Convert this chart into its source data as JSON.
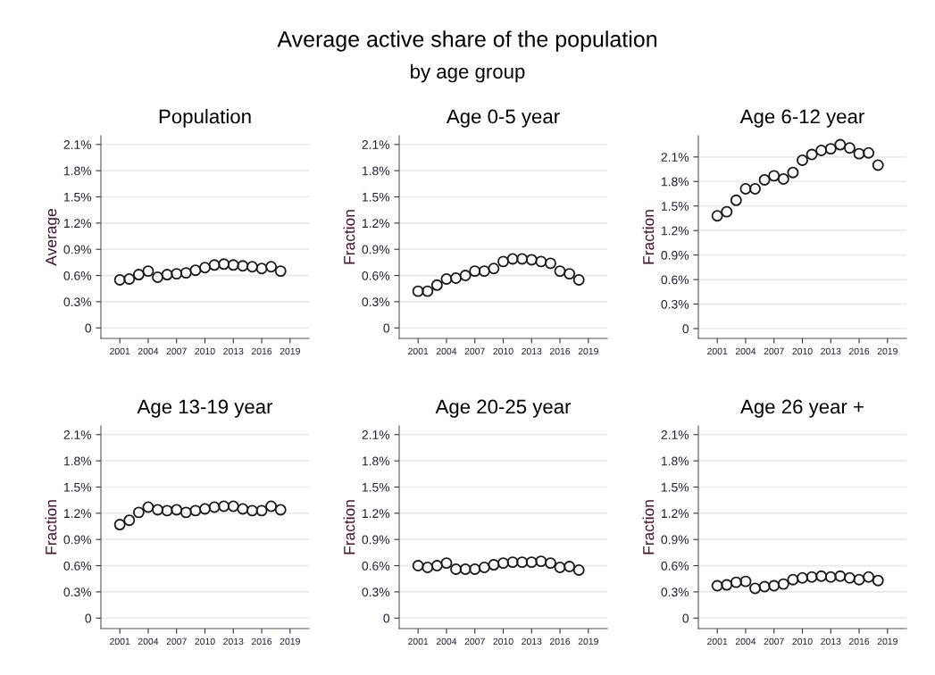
{
  "chart_data": [
    {
      "type": "scatter",
      "title": "Population",
      "ylabel": "Average",
      "annotations": [
        "Average active share of the population",
        "by age group"
      ],
      "marker": "circle",
      "grid": "y",
      "xlim": [
        1999,
        2021
      ],
      "xticks": [
        2001,
        2004,
        2007,
        2010,
        2013,
        2016,
        2019
      ],
      "ylim": [
        -0.12,
        2.2
      ],
      "yticks": [
        {
          "value": 0,
          "label": "0"
        },
        {
          "value": 0.3,
          "label": "0.3%"
        },
        {
          "value": 0.6,
          "label": "0.6%"
        },
        {
          "value": 0.9,
          "label": "0.9%"
        },
        {
          "value": 1.2,
          "label": "1.2%"
        },
        {
          "value": 1.5,
          "label": "1.5%"
        },
        {
          "value": 1.8,
          "label": "1.8%"
        },
        {
          "value": 2.1,
          "label": "2.1%"
        }
      ],
      "x": [
        2001,
        2002,
        2003,
        2004,
        2005,
        2006,
        2007,
        2008,
        2009,
        2010,
        2011,
        2012,
        2013,
        2014,
        2015,
        2016,
        2017,
        2018
      ],
      "series": [
        {
          "color": "#1a1a1a",
          "values": [
            0.55,
            0.56,
            0.61,
            0.65,
            0.58,
            0.61,
            0.62,
            0.63,
            0.66,
            0.69,
            0.72,
            0.73,
            0.72,
            0.71,
            0.7,
            0.68,
            0.7,
            0.65
          ]
        }
      ]
    },
    {
      "type": "scatter",
      "title": "Age 0-5 year",
      "ylabel": "Fraction",
      "marker": "circle",
      "grid": "y",
      "xlim": [
        1999,
        2021
      ],
      "xticks": [
        2001,
        2004,
        2007,
        2010,
        2013,
        2016,
        2019
      ],
      "ylim": [
        -0.12,
        2.2
      ],
      "yticks": [
        {
          "value": 0,
          "label": "0"
        },
        {
          "value": 0.3,
          "label": "0.3%"
        },
        {
          "value": 0.6,
          "label": "0.6%"
        },
        {
          "value": 0.9,
          "label": "0.9%"
        },
        {
          "value": 1.2,
          "label": "1.2%"
        },
        {
          "value": 1.5,
          "label": "1.5%"
        },
        {
          "value": 1.8,
          "label": "1.8%"
        },
        {
          "value": 2.1,
          "label": "2.1%"
        }
      ],
      "x": [
        2001,
        2002,
        2003,
        2004,
        2005,
        2006,
        2007,
        2008,
        2009,
        2010,
        2011,
        2012,
        2013,
        2014,
        2015,
        2016,
        2017,
        2018
      ],
      "series": [
        {
          "color": "#1a1a1a",
          "values": [
            0.42,
            0.42,
            0.49,
            0.56,
            0.57,
            0.6,
            0.65,
            0.65,
            0.68,
            0.76,
            0.79,
            0.79,
            0.78,
            0.76,
            0.74,
            0.65,
            0.62,
            0.55
          ]
        }
      ]
    },
    {
      "type": "scatter",
      "title": "Age 6-12 year",
      "ylabel": "Fraction",
      "marker": "circle",
      "grid": "y",
      "xlim": [
        1999,
        2021
      ],
      "xticks": [
        2001,
        2004,
        2007,
        2010,
        2013,
        2016,
        2019
      ],
      "ylim": [
        -0.12,
        2.36
      ],
      "yticks": [
        {
          "value": 0,
          "label": "0"
        },
        {
          "value": 0.3,
          "label": "0.3%"
        },
        {
          "value": 0.6,
          "label": "0.6%"
        },
        {
          "value": 0.9,
          "label": "0.9%"
        },
        {
          "value": 1.2,
          "label": "1.2%"
        },
        {
          "value": 1.5,
          "label": "1.5%"
        },
        {
          "value": 1.8,
          "label": "1.8%"
        },
        {
          "value": 2.1,
          "label": "2.1%"
        }
      ],
      "x": [
        2001,
        2002,
        2003,
        2004,
        2005,
        2006,
        2007,
        2008,
        2009,
        2010,
        2011,
        2012,
        2013,
        2014,
        2015,
        2016,
        2017,
        2018
      ],
      "series": [
        {
          "color": "#1a1a1a",
          "values": [
            1.38,
            1.43,
            1.57,
            1.71,
            1.71,
            1.82,
            1.87,
            1.83,
            1.91,
            2.06,
            2.13,
            2.18,
            2.2,
            2.25,
            2.21,
            2.14,
            2.15,
            2.0
          ]
        }
      ]
    },
    {
      "type": "scatter",
      "title": "Age 13-19 year",
      "ylabel": "Fraction",
      "marker": "circle",
      "grid": "y",
      "xlim": [
        1999,
        2021
      ],
      "xticks": [
        2001,
        2004,
        2007,
        2010,
        2013,
        2016,
        2019
      ],
      "ylim": [
        -0.12,
        2.2
      ],
      "yticks": [
        {
          "value": 0,
          "label": "0"
        },
        {
          "value": 0.3,
          "label": "0.3%"
        },
        {
          "value": 0.6,
          "label": "0.6%"
        },
        {
          "value": 0.9,
          "label": "0.9%"
        },
        {
          "value": 1.2,
          "label": "1.2%"
        },
        {
          "value": 1.5,
          "label": "1.5%"
        },
        {
          "value": 1.8,
          "label": "1.8%"
        },
        {
          "value": 2.1,
          "label": "2.1%"
        }
      ],
      "x": [
        2001,
        2002,
        2003,
        2004,
        2005,
        2006,
        2007,
        2008,
        2009,
        2010,
        2011,
        2012,
        2013,
        2014,
        2015,
        2016,
        2017,
        2018
      ],
      "series": [
        {
          "color": "#1a1a1a",
          "values": [
            1.07,
            1.12,
            1.21,
            1.27,
            1.24,
            1.23,
            1.24,
            1.21,
            1.23,
            1.25,
            1.27,
            1.28,
            1.28,
            1.25,
            1.23,
            1.23,
            1.28,
            1.24
          ]
        }
      ]
    },
    {
      "type": "scatter",
      "title": "Age 20-25 year",
      "ylabel": "Fraction",
      "marker": "circle",
      "grid": "y",
      "xlim": [
        1999,
        2021
      ],
      "xticks": [
        2001,
        2004,
        2007,
        2010,
        2013,
        2016,
        2019
      ],
      "ylim": [
        -0.12,
        2.2
      ],
      "yticks": [
        {
          "value": 0,
          "label": "0"
        },
        {
          "value": 0.3,
          "label": "0.3%"
        },
        {
          "value": 0.6,
          "label": "0.6%"
        },
        {
          "value": 0.9,
          "label": "0.9%"
        },
        {
          "value": 1.2,
          "label": "1.2%"
        },
        {
          "value": 1.5,
          "label": "1.5%"
        },
        {
          "value": 1.8,
          "label": "1.8%"
        },
        {
          "value": 2.1,
          "label": "2.1%"
        }
      ],
      "x": [
        2001,
        2002,
        2003,
        2004,
        2005,
        2006,
        2007,
        2008,
        2009,
        2010,
        2011,
        2012,
        2013,
        2014,
        2015,
        2016,
        2017,
        2018
      ],
      "series": [
        {
          "color": "#1a1a1a",
          "values": [
            0.6,
            0.58,
            0.6,
            0.63,
            0.56,
            0.56,
            0.56,
            0.58,
            0.61,
            0.63,
            0.64,
            0.64,
            0.64,
            0.65,
            0.63,
            0.58,
            0.59,
            0.55
          ]
        }
      ]
    },
    {
      "type": "scatter",
      "title": "Age 26 year +",
      "ylabel": "Fraction",
      "marker": "circle",
      "grid": "y",
      "xlim": [
        1999,
        2021
      ],
      "xticks": [
        2001,
        2004,
        2007,
        2010,
        2013,
        2016,
        2019
      ],
      "ylim": [
        -0.12,
        2.2
      ],
      "yticks": [
        {
          "value": 0,
          "label": "0"
        },
        {
          "value": 0.3,
          "label": "0.3%"
        },
        {
          "value": 0.6,
          "label": "0.6%"
        },
        {
          "value": 0.9,
          "label": "0.9%"
        },
        {
          "value": 1.2,
          "label": "1.2%"
        },
        {
          "value": 1.5,
          "label": "1.5%"
        },
        {
          "value": 1.8,
          "label": "1.8%"
        },
        {
          "value": 2.1,
          "label": "2.1%"
        }
      ],
      "x": [
        2001,
        2002,
        2003,
        2004,
        2005,
        2006,
        2007,
        2008,
        2009,
        2010,
        2011,
        2012,
        2013,
        2014,
        2015,
        2016,
        2017,
        2018
      ],
      "series": [
        {
          "color": "#1a1a1a",
          "values": [
            0.37,
            0.38,
            0.41,
            0.42,
            0.34,
            0.36,
            0.37,
            0.39,
            0.44,
            0.46,
            0.47,
            0.48,
            0.47,
            0.48,
            0.46,
            0.44,
            0.47,
            0.43
          ]
        }
      ]
    }
  ]
}
